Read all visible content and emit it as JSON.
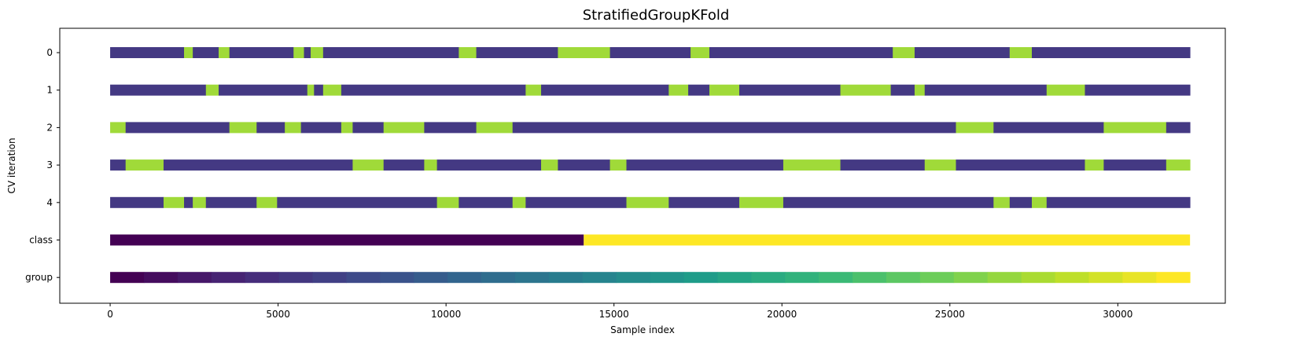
{
  "chart_data": {
    "type": "bar",
    "title": "StratifiedGroupKFold",
    "xlabel": "Sample index",
    "ylabel": "CV iteration",
    "xlim": [
      -1500,
      33200
    ],
    "xticks": [
      0,
      5000,
      10000,
      15000,
      20000,
      25000,
      30000
    ],
    "xtick_labels": [
      "0",
      "5000",
      "10000",
      "15000",
      "20000",
      "25000",
      "30000"
    ],
    "row_labels": [
      "0",
      "1",
      "2",
      "3",
      "4",
      "class",
      "group"
    ],
    "n_samples": 32150,
    "grid": false,
    "colors": {
      "train": "#443983",
      "test": "#a0da39",
      "class_0": "#440154",
      "class_1": "#fde725"
    },
    "cv_iterations": [
      {
        "label": "0",
        "test_intervals": [
          [
            2200,
            2460
          ],
          [
            3230,
            3550
          ],
          [
            5460,
            5770
          ],
          [
            5970,
            6340
          ],
          [
            10380,
            10900
          ],
          [
            13330,
            14880
          ],
          [
            17280,
            17840
          ],
          [
            23300,
            23950
          ],
          [
            26780,
            27440
          ]
        ]
      },
      {
        "label": "1",
        "test_intervals": [
          [
            2850,
            3230
          ],
          [
            5870,
            6070
          ],
          [
            6340,
            6880
          ],
          [
            12370,
            12830
          ],
          [
            16630,
            17210
          ],
          [
            17840,
            18730
          ],
          [
            21740,
            23240
          ],
          [
            23950,
            24250
          ],
          [
            27880,
            29020
          ]
        ]
      },
      {
        "label": "2",
        "test_intervals": [
          [
            0,
            460
          ],
          [
            3550,
            4360
          ],
          [
            5200,
            5680
          ],
          [
            6880,
            7220
          ],
          [
            8140,
            9350
          ],
          [
            10900,
            11980
          ],
          [
            25180,
            26300
          ],
          [
            29580,
            31440
          ]
        ]
      },
      {
        "label": "3",
        "test_intervals": [
          [
            460,
            1590
          ],
          [
            7220,
            8140
          ],
          [
            9350,
            9730
          ],
          [
            12830,
            13330
          ],
          [
            14880,
            15370
          ],
          [
            20040,
            21740
          ],
          [
            24250,
            25180
          ],
          [
            29020,
            29580
          ],
          [
            31440,
            32150
          ]
        ]
      },
      {
        "label": "4",
        "test_intervals": [
          [
            1590,
            2200
          ],
          [
            2460,
            2850
          ],
          [
            4360,
            4970
          ],
          [
            9730,
            10380
          ],
          [
            11980,
            12370
          ],
          [
            15370,
            16630
          ],
          [
            18730,
            20040
          ],
          [
            26300,
            26780
          ],
          [
            27440,
            27880
          ]
        ]
      }
    ],
    "class": {
      "label": "class",
      "boundary": 14100,
      "values": [
        0,
        1
      ]
    },
    "group": {
      "label": "group",
      "n_groups": 32
    }
  }
}
